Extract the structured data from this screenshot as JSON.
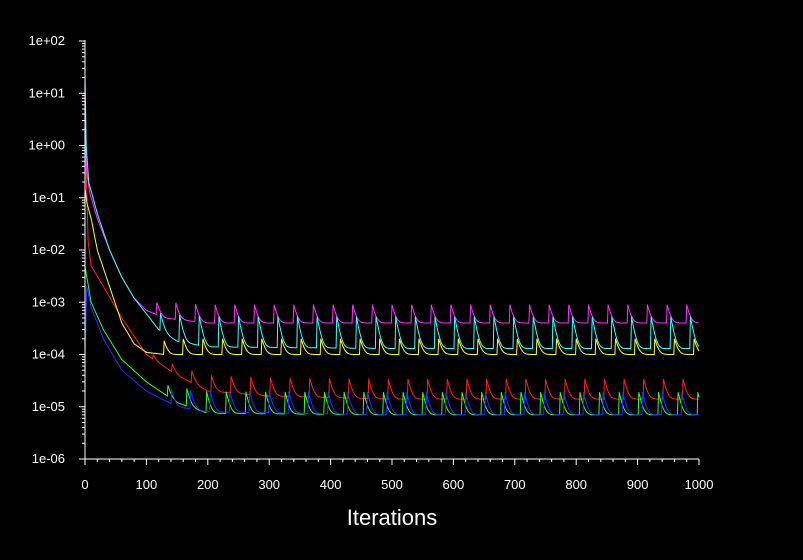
{
  "colors": {
    "background": "#000000",
    "axis": "#ffffff"
  },
  "chart_data": {
    "type": "line",
    "title": "",
    "xlabel": "Iterations",
    "ylabel": "",
    "xlim": [
      0,
      1000
    ],
    "ylim": [
      1e-06,
      100
    ],
    "y_scale": "log",
    "grid": false,
    "legend": "none",
    "x_ticks": [
      0,
      100,
      200,
      300,
      400,
      500,
      600,
      700,
      800,
      900,
      1000
    ],
    "x_tick_labels": [
      "0",
      "100",
      "200",
      "300",
      "400",
      "500",
      "600",
      "700",
      "800",
      "900",
      "1000"
    ],
    "y_ticks": [
      1e-06,
      1e-05,
      0.0001,
      0.001,
      0.01,
      0.1,
      1,
      10,
      100
    ],
    "y_tick_labels": [
      "1e-06",
      "1e-05",
      "1e-04",
      "1e-03",
      "1e-02",
      "1e-01",
      "1e+00",
      "1e+01",
      "1e+02"
    ],
    "series": [
      {
        "color": "#ff2020",
        "x": [
          0,
          5,
          10,
          30,
          60,
          100,
          150,
          200,
          300,
          500,
          700,
          1000
        ],
        "y": [
          3,
          0.015,
          0.005,
          0.002,
          0.0005,
          0.0001,
          4e-05,
          2e-05,
          1.6e-05,
          1.4e-05,
          1.4e-05,
          1.4e-05
        ],
        "period": 32,
        "spike": 2e-05
      },
      {
        "color": "#ff30ff",
        "x": [
          0,
          3,
          8,
          20,
          40,
          60,
          80,
          100,
          130,
          200,
          500,
          1000
        ],
        "y": [
          3,
          0.3,
          0.12,
          0.04,
          0.01,
          0.003,
          0.0012,
          0.0007,
          0.0005,
          0.0004,
          0.0004,
          0.0004
        ],
        "period": 32,
        "spike": 0.0005
      },
      {
        "color": "#40ffff",
        "x": [
          0,
          2,
          6,
          20,
          40,
          60,
          80,
          100,
          120,
          150,
          200,
          500,
          1000
        ],
        "y": [
          20,
          1,
          0.2,
          0.05,
          0.01,
          0.003,
          0.0012,
          0.0006,
          0.0003,
          0.00018,
          0.00014,
          0.00013,
          0.00013
        ],
        "period": 32,
        "spike": 0.0004
      },
      {
        "color": "#ffff40",
        "x": [
          0,
          3,
          10,
          20,
          40,
          60,
          80,
          100,
          130,
          200,
          500,
          1000
        ],
        "y": [
          0.15,
          0.08,
          0.04,
          0.01,
          0.002,
          0.0004,
          0.00016,
          0.00011,
          0.0001,
          0.0001,
          0.0001,
          0.0001
        ],
        "period": 32,
        "spike": 0.0001
      },
      {
        "color": "#30ff30",
        "x": [
          0,
          3,
          10,
          30,
          60,
          100,
          150,
          170,
          200,
          500,
          1000
        ],
        "y": [
          0.005,
          0.003,
          0.001,
          0.0003,
          8e-05,
          3e-05,
          1.2e-05,
          1e-05,
          7.5e-06,
          7e-06,
          7e-06
        ],
        "period": 32,
        "spike": 1.2e-05
      },
      {
        "color": "#2030ff",
        "x": [
          0,
          3,
          10,
          30,
          60,
          100,
          150,
          200,
          500,
          1000
        ],
        "y": [
          0.0001,
          0.002,
          0.0008,
          0.0002,
          5e-05,
          2e-05,
          1e-05,
          8e-06,
          7e-06,
          7e-06
        ],
        "period": 32,
        "spike": 1.2e-05
      }
    ]
  }
}
